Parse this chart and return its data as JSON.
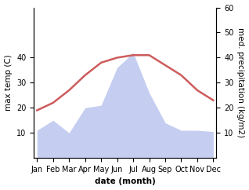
{
  "months": [
    "Jan",
    "Feb",
    "Mar",
    "Apr",
    "May",
    "Jun",
    "Jul",
    "Aug",
    "Sep",
    "Oct",
    "Nov",
    "Dec"
  ],
  "month_positions": [
    0,
    1,
    2,
    3,
    4,
    5,
    6,
    7,
    8,
    9,
    10,
    11
  ],
  "temperature": [
    19,
    22,
    27,
    33,
    38,
    40,
    41,
    41,
    37,
    33,
    27,
    23
  ],
  "precipitation": [
    11,
    15,
    10,
    20,
    21,
    36,
    42,
    26,
    14,
    11,
    11,
    10.5
  ],
  "temp_color": "#cd5c5c",
  "precip_fill_color": "#c5cdf0",
  "precip_edge_color": "#aab4e8",
  "left_ylim": [
    0,
    60
  ],
  "left_yticks": [
    10,
    20,
    30,
    40
  ],
  "right_ylim": [
    0,
    60
  ],
  "right_yticks": [
    10,
    20,
    30,
    40,
    50,
    60
  ],
  "ylabel_left": "max temp (C)",
  "ylabel_right": "med. precipitation (kg/m2)",
  "xlabel": "date (month)",
  "label_fontsize": 7.5,
  "tick_fontsize": 7,
  "temp_linewidth": 1.8,
  "background_color": "#ffffff"
}
